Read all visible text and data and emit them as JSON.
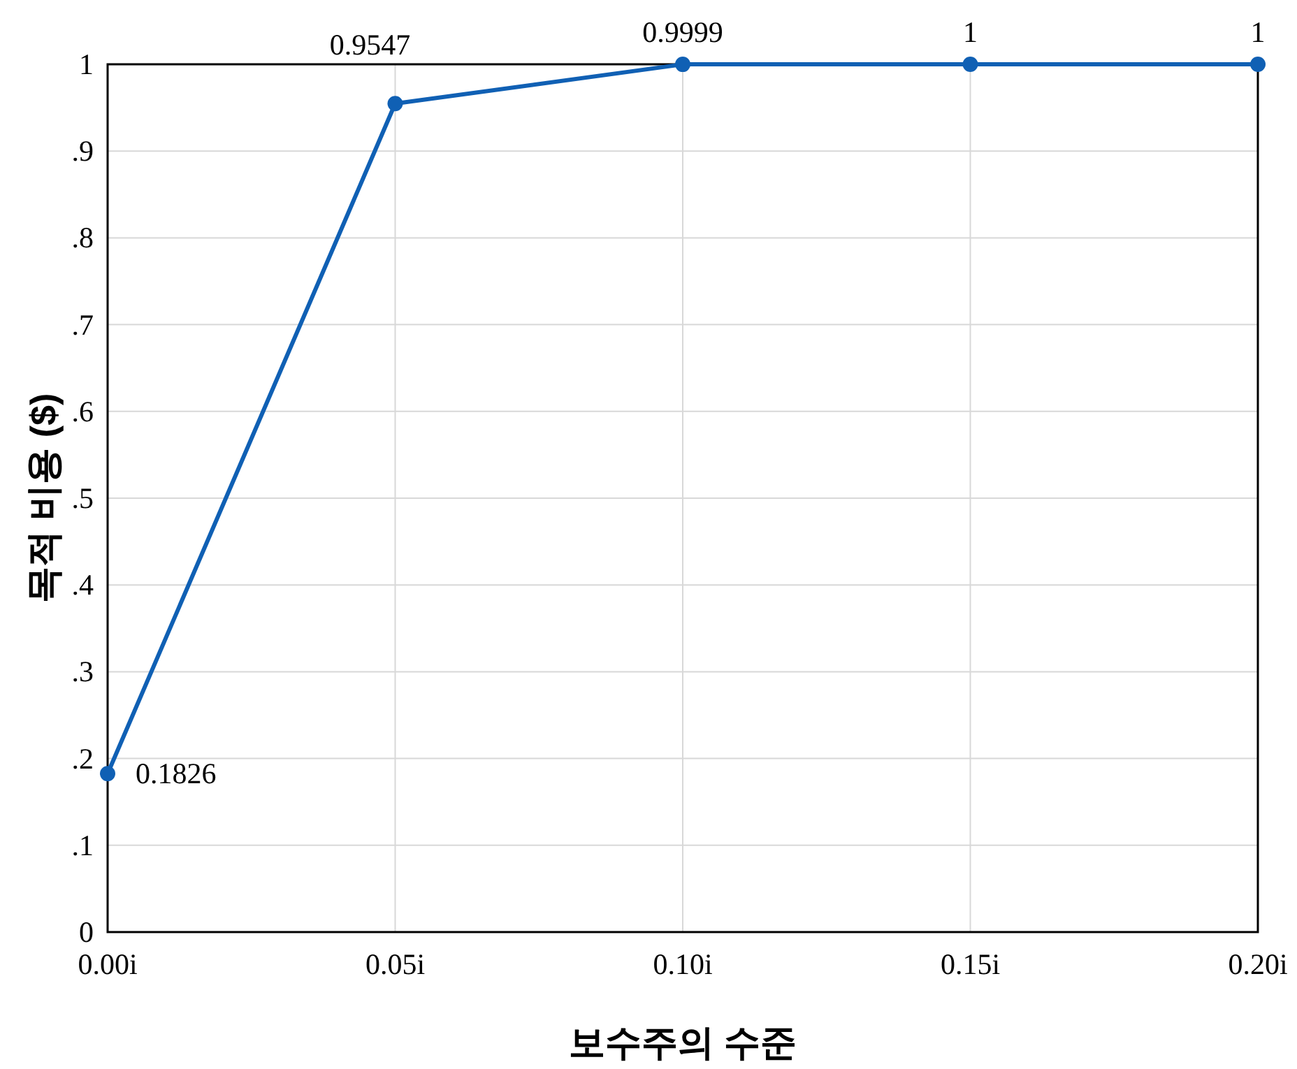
{
  "chart_data": {
    "type": "line",
    "xlabel": "보수주의 수준",
    "ylabel": "목적 비용 ($)",
    "categories": [
      "0.00i",
      "0.05i",
      "0.10i",
      "0.15i",
      "0.20i"
    ],
    "series": [
      {
        "color": "#1060b4",
        "values": [
          0.1826,
          0.9547,
          0.9999,
          1,
          1
        ]
      }
    ],
    "ylim": [
      0,
      1
    ],
    "yticks": [
      0,
      {
        "value": 0.1,
        "label": ".1"
      },
      {
        "value": 0.2,
        "label": ".2"
      },
      {
        "value": 0.3,
        "label": ".3"
      },
      {
        "value": 0.4,
        "label": ".4"
      },
      {
        "value": 0.5,
        "label": ".5"
      },
      {
        "value": 0.6,
        "label": ".6"
      },
      {
        "value": 0.7,
        "label": ".7"
      },
      {
        "value": 0.8,
        "label": ".8"
      },
      {
        "value": 0.9,
        "label": ".9"
      },
      1
    ],
    "grid": true,
    "data_labels": true,
    "marker": "circle",
    "line_style": "solid"
  }
}
